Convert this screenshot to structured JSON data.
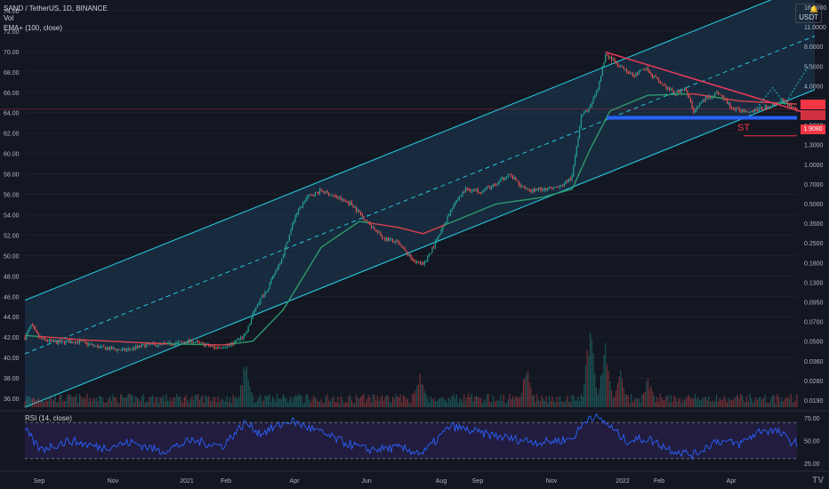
{
  "header": {
    "symbol_line": "SAND / TetherUS, 1D, BINANCE",
    "volume_label": "Vol",
    "ema_label": "EMA+ (100, close)"
  },
  "rsi_panel": {
    "label": "RSI (14, close)"
  },
  "currency": {
    "label": "USDT",
    "bell_icon": "bell-icon"
  },
  "annotation": {
    "st_label": "ST"
  },
  "price_tags": {
    "current": "",
    "current2": "",
    "st_value": "1.9080"
  },
  "branding": {
    "logo_icon": "tradingview-logo-icon"
  },
  "colors": {
    "background": "#131722",
    "channel_line": "#26c6da",
    "channel_fill": "#1e3a55",
    "bull": "#26a69a",
    "bear": "#ef5350",
    "ema_up": "#2e9e6e",
    "ema_down": "#e0454f",
    "resistance": "#e23a5a",
    "support": "#2962ff",
    "rsi_line": "#2962ff",
    "rsi_band": "#2a1f4a"
  },
  "chart_data": {
    "type": "candlestick",
    "title": "SAND / TetherUS, 1D, BINANCE",
    "left_axis": {
      "ticks": [
        "74.00",
        "72.00",
        "70.00",
        "68.00",
        "66.00",
        "64.00",
        "62.00",
        "60.00",
        "58.00",
        "56.00",
        "54.00",
        "52.00",
        "50.00",
        "48.00",
        "46.00",
        "44.00",
        "42.00",
        "40.00",
        "38.00",
        "36.00"
      ],
      "ylim": [
        35,
        75
      ]
    },
    "right_axis": {
      "scale": "log",
      "ticks": [
        "16.0000",
        "11.0000",
        "8.0000",
        "5.5000",
        "4.0000",
        "2.7000",
        "1.9000",
        "1.3000",
        "1.0000",
        "0.7000",
        "0.5000",
        "0.3500",
        "0.2500",
        "0.1800",
        "0.1300",
        "0.0950",
        "0.0700",
        "0.0500",
        "0.0360",
        "0.0260",
        "0.0190"
      ]
    },
    "x_axis": {
      "ticks": [
        "Sep",
        "Nov",
        "2021",
        "Feb",
        "Apr",
        "Jun",
        "Aug",
        "Sep",
        "Nov",
        "2022",
        "Feb",
        "Apr"
      ]
    },
    "rsi_axis": {
      "ticks": [
        "75.00",
        "50.00",
        "25.00"
      ],
      "ylim": [
        20,
        80
      ],
      "upper": 70,
      "lower": 30
    },
    "price_path": [
      [
        0,
        0.048
      ],
      [
        4,
        0.06
      ],
      [
        10,
        0.047
      ],
      [
        20,
        0.044
      ],
      [
        35,
        0.045
      ],
      [
        50,
        0.04
      ],
      [
        65,
        0.038
      ],
      [
        80,
        0.042
      ],
      [
        95,
        0.043
      ],
      [
        110,
        0.045
      ],
      [
        125,
        0.04
      ],
      [
        135,
        0.042
      ],
      [
        145,
        0.05
      ],
      [
        152,
        0.085
      ],
      [
        160,
        0.12
      ],
      [
        170,
        0.22
      ],
      [
        178,
        0.45
      ],
      [
        186,
        0.63
      ],
      [
        195,
        0.7
      ],
      [
        205,
        0.62
      ],
      [
        215,
        0.55
      ],
      [
        225,
        0.4
      ],
      [
        235,
        0.3
      ],
      [
        245,
        0.27
      ],
      [
        255,
        0.2
      ],
      [
        262,
        0.18
      ],
      [
        272,
        0.3
      ],
      [
        282,
        0.55
      ],
      [
        290,
        0.72
      ],
      [
        300,
        0.7
      ],
      [
        310,
        0.78
      ],
      [
        318,
        0.95
      ],
      [
        326,
        0.78
      ],
      [
        334,
        0.7
      ],
      [
        342,
        0.73
      ],
      [
        352,
        0.75
      ],
      [
        360,
        0.9
      ],
      [
        366,
        2.8
      ],
      [
        372,
        3.2
      ],
      [
        377,
        4.5
      ],
      [
        382,
        8.5
      ],
      [
        390,
        7.0
      ],
      [
        400,
        5.6
      ],
      [
        408,
        6.5
      ],
      [
        418,
        5.0
      ],
      [
        428,
        4.1
      ],
      [
        434,
        4.6
      ],
      [
        440,
        3.0
      ],
      [
        448,
        3.8
      ],
      [
        456,
        4.2
      ],
      [
        466,
        3.1
      ],
      [
        478,
        3.0
      ],
      [
        488,
        3.2
      ],
      [
        498,
        3.6
      ],
      [
        508,
        3.1
      ]
    ],
    "ema_path": [
      [
        0,
        0.05
      ],
      [
        40,
        0.046
      ],
      [
        90,
        0.043
      ],
      [
        130,
        0.042
      ],
      [
        150,
        0.045
      ],
      [
        170,
        0.08
      ],
      [
        195,
        0.25
      ],
      [
        220,
        0.4
      ],
      [
        245,
        0.36
      ],
      [
        262,
        0.32
      ],
      [
        282,
        0.4
      ],
      [
        310,
        0.55
      ],
      [
        340,
        0.62
      ],
      [
        360,
        0.72
      ],
      [
        372,
        1.5
      ],
      [
        385,
        3.0
      ],
      [
        410,
        4.0
      ],
      [
        440,
        4.1
      ],
      [
        470,
        3.6
      ],
      [
        508,
        3.4
      ]
    ],
    "volume_spikes": [
      [
        145,
        0.55
      ],
      [
        260,
        0.35
      ],
      [
        330,
        0.45
      ],
      [
        372,
        0.95
      ],
      [
        382,
        0.7
      ],
      [
        392,
        0.4
      ],
      [
        410,
        0.35
      ]
    ],
    "channel": {
      "lower": [
        [
          0,
          0.0135
        ],
        [
          508,
          3.1
        ]
      ],
      "upper": [
        [
          0,
          0.095
        ],
        [
          508,
          22.0
        ]
      ]
    },
    "resistance_line": [
      [
        382,
        8.8
      ],
      [
        508,
        3.05
      ]
    ],
    "support_level": 2.65,
    "st_level": 1.908,
    "rsi_path": [
      [
        0,
        62
      ],
      [
        10,
        40
      ],
      [
        30,
        50
      ],
      [
        50,
        42
      ],
      [
        70,
        48
      ],
      [
        90,
        38
      ],
      [
        110,
        50
      ],
      [
        130,
        44
      ],
      [
        145,
        70
      ],
      [
        155,
        58
      ],
      [
        175,
        72
      ],
      [
        190,
        62
      ],
      [
        210,
        48
      ],
      [
        225,
        40
      ],
      [
        245,
        42
      ],
      [
        262,
        36
      ],
      [
        280,
        66
      ],
      [
        300,
        58
      ],
      [
        320,
        52
      ],
      [
        340,
        48
      ],
      [
        360,
        52
      ],
      [
        372,
        78
      ],
      [
        382,
        70
      ],
      [
        395,
        50
      ],
      [
        410,
        52
      ],
      [
        425,
        40
      ],
      [
        440,
        34
      ],
      [
        455,
        50
      ],
      [
        470,
        46
      ],
      [
        485,
        62
      ],
      [
        495,
        60
      ],
      [
        505,
        48
      ]
    ]
  }
}
